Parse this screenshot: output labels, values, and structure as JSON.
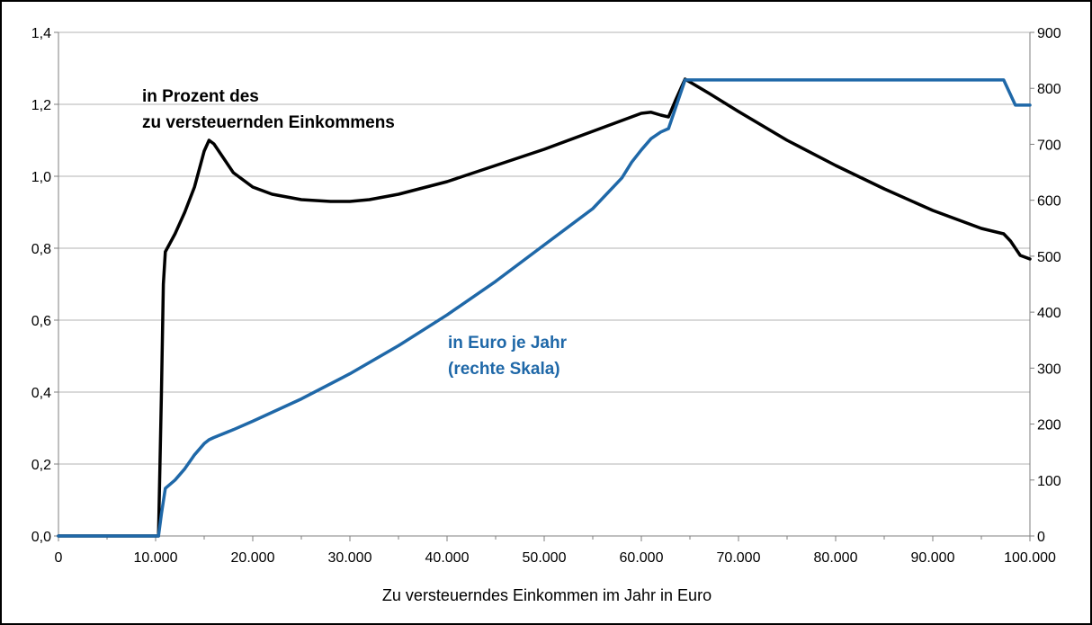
{
  "chart_data": {
    "type": "line",
    "title": "",
    "xlabel": "Zu versteuerndes Einkommen im Jahr in Euro",
    "ylabel": "",
    "y2label": "",
    "xlim": [
      0,
      100000
    ],
    "ylim": [
      0,
      1.4
    ],
    "y2lim": [
      0,
      900
    ],
    "grid": true,
    "legend": "none",
    "x_ticks": [
      0,
      10000,
      20000,
      30000,
      40000,
      50000,
      60000,
      70000,
      80000,
      90000,
      100000
    ],
    "x_tick_labels": [
      "0",
      "10.000",
      "20.000",
      "30.000",
      "40.000",
      "50.000",
      "60.000",
      "70.000",
      "80.000",
      "90.000",
      "100.000"
    ],
    "y_ticks": [
      0,
      0.2,
      0.4,
      0.6,
      0.8,
      1.0,
      1.2,
      1.4
    ],
    "y_tick_labels": [
      "0,0",
      "0,2",
      "0,4",
      "0,6",
      "0,8",
      "1,0",
      "1,2",
      "1,4"
    ],
    "y2_ticks": [
      0,
      100,
      200,
      300,
      400,
      500,
      600,
      700,
      800,
      900
    ],
    "y2_tick_labels": [
      "0",
      "100",
      "200",
      "300",
      "400",
      "500",
      "600",
      "700",
      "800",
      "900"
    ],
    "colors": {
      "percent": "#000000",
      "euro": "#1f68a8",
      "grid": "#b3b3b3"
    },
    "annotations": [
      {
        "lines": [
          "in Prozent des",
          "zu versteuernden Einkommens"
        ],
        "color": "#000000"
      },
      {
        "lines": [
          "in Euro je Jahr",
          "(rechte Skala)"
        ],
        "color": "#1f68a8"
      }
    ],
    "series": [
      {
        "axis": "left",
        "x": [
          0,
          10300,
          10600,
          10800,
          11000,
          12000,
          13000,
          14000,
          15000,
          15500,
          16000,
          17000,
          18000,
          20000,
          22000,
          25000,
          28000,
          30000,
          32000,
          35000,
          40000,
          45000,
          50000,
          55000,
          58000,
          60000,
          61000,
          62000,
          62800,
          63500,
          64500,
          67000,
          70000,
          75000,
          80000,
          85000,
          90000,
          95000,
          97300,
          98000,
          99000,
          100000
        ],
        "values": [
          0,
          0,
          0.4,
          0.7,
          0.79,
          0.84,
          0.9,
          0.97,
          1.07,
          1.1,
          1.09,
          1.05,
          1.01,
          0.97,
          0.95,
          0.935,
          0.93,
          0.93,
          0.935,
          0.95,
          0.985,
          1.03,
          1.075,
          1.125,
          1.155,
          1.175,
          1.178,
          1.17,
          1.165,
          1.21,
          1.27,
          1.23,
          1.18,
          1.1,
          1.03,
          0.965,
          0.905,
          0.855,
          0.84,
          0.82,
          0.78,
          0.77
        ]
      },
      {
        "axis": "right",
        "x": [
          0,
          10300,
          10600,
          11000,
          12000,
          13000,
          14000,
          15000,
          15500,
          16000,
          18000,
          20000,
          25000,
          30000,
          35000,
          40000,
          45000,
          50000,
          55000,
          58000,
          59000,
          60000,
          61000,
          62000,
          62800,
          64500,
          70000,
          80000,
          90000,
          97300,
          98500,
          100000
        ],
        "values": [
          0,
          0,
          40,
          85,
          100,
          120,
          145,
          165,
          172,
          176,
          190,
          205,
          245,
          290,
          340,
          395,
          455,
          520,
          585,
          640,
          668,
          690,
          710,
          722,
          728,
          815,
          815,
          815,
          815,
          815,
          770,
          770
        ]
      }
    ]
  }
}
